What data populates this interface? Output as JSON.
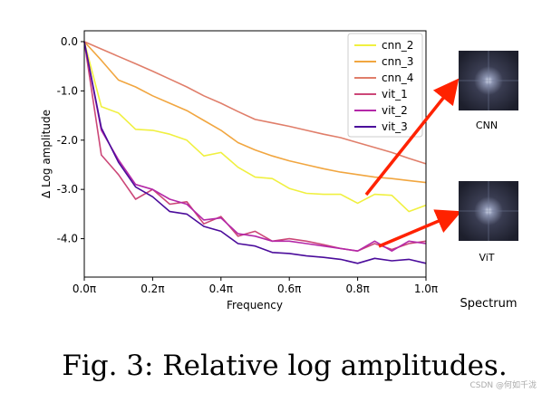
{
  "chart_data": {
    "type": "line",
    "xlabel": "Frequency",
    "ylabel": "Δ Log amplitude",
    "xlim": [
      0.0,
      1.0
    ],
    "ylim": [
      -4.78,
      0.22
    ],
    "xticks": [
      0.0,
      0.2,
      0.4,
      0.6,
      0.8,
      1.0
    ],
    "xtick_labels": [
      "0.0π",
      "0.2π",
      "0.4π",
      "0.6π",
      "0.8π",
      "1.0π"
    ],
    "yticks": [
      0.0,
      -1.0,
      -2.0,
      -3.0,
      -4.0
    ],
    "ytick_labels": [
      "0.0",
      "-1.0",
      "-2.0",
      "-3.0",
      "-4.0"
    ],
    "grid": false,
    "legend_position": "top-right",
    "x": [
      0.0,
      0.05,
      0.1,
      0.15,
      0.2,
      0.25,
      0.3,
      0.35,
      0.4,
      0.45,
      0.5,
      0.55,
      0.6,
      0.65,
      0.7,
      0.75,
      0.8,
      0.85,
      0.9,
      0.95,
      1.0
    ],
    "series": [
      {
        "name": "cnn_2",
        "color": "#f0f040",
        "values": [
          0.0,
          -1.32,
          -1.45,
          -1.78,
          -1.8,
          -1.88,
          -2.0,
          -2.32,
          -2.25,
          -2.55,
          -2.75,
          -2.78,
          -2.98,
          -3.08,
          -3.1,
          -3.1,
          -3.28,
          -3.1,
          -3.12,
          -3.45,
          -3.32
        ]
      },
      {
        "name": "cnn_3",
        "color": "#f1a640",
        "values": [
          0.0,
          -0.38,
          -0.78,
          -0.92,
          -1.1,
          -1.25,
          -1.4,
          -1.6,
          -1.8,
          -2.05,
          -2.2,
          -2.32,
          -2.42,
          -2.5,
          -2.58,
          -2.65,
          -2.7,
          -2.75,
          -2.78,
          -2.82,
          -2.86
        ]
      },
      {
        "name": "cnn_4",
        "color": "#e07e6a",
        "values": [
          0.0,
          -0.15,
          -0.3,
          -0.45,
          -0.6,
          -0.76,
          -0.92,
          -1.1,
          -1.25,
          -1.42,
          -1.58,
          -1.65,
          -1.72,
          -1.8,
          -1.88,
          -1.95,
          -2.05,
          -2.15,
          -2.25,
          -2.37,
          -2.48
        ]
      },
      {
        "name": "vit_1",
        "color": "#cc4778",
        "values": [
          0.0,
          -2.3,
          -2.7,
          -3.2,
          -3.0,
          -3.3,
          -3.25,
          -3.7,
          -3.55,
          -3.95,
          -3.85,
          -4.05,
          -4.0,
          -4.05,
          -4.12,
          -4.2,
          -4.25,
          -4.1,
          -4.22,
          -4.1,
          -4.05
        ]
      },
      {
        "name": "vit_2",
        "color": "#b428a8",
        "values": [
          0.0,
          -1.8,
          -2.4,
          -2.9,
          -3.0,
          -3.2,
          -3.3,
          -3.62,
          -3.58,
          -3.9,
          -3.95,
          -4.05,
          -4.05,
          -4.1,
          -4.15,
          -4.2,
          -4.25,
          -4.05,
          -4.25,
          -4.05,
          -4.1
        ]
      },
      {
        "name": "vit_3",
        "color": "#4b0c9b",
        "values": [
          0.0,
          -1.75,
          -2.45,
          -2.95,
          -3.15,
          -3.45,
          -3.5,
          -3.75,
          -3.85,
          -4.1,
          -4.15,
          -4.28,
          -4.3,
          -4.35,
          -4.38,
          -4.42,
          -4.5,
          -4.4,
          -4.45,
          -4.42,
          -4.5
        ]
      }
    ]
  },
  "thumbnails": [
    {
      "label": "CNN"
    },
    {
      "label": "ViT"
    }
  ],
  "arrow_color": "#ff2200",
  "spectrum_label": "Spectrum",
  "caption": "Fig. 3: Relative log amplitudes.",
  "watermark": "CSDN @何如千泷"
}
